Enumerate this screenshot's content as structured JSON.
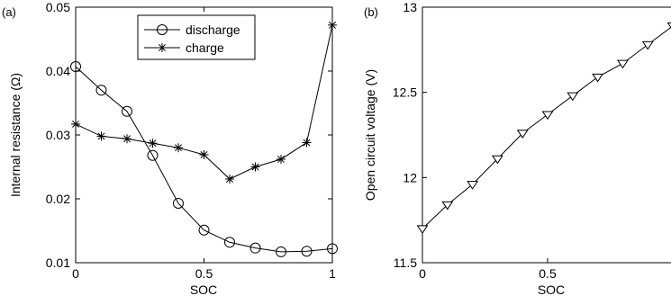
{
  "chart_data": [
    {
      "type": "line",
      "panel_label": "(a)",
      "title": "",
      "xlabel": "SOC",
      "ylabel": "Internal resistance (Ω)",
      "xlim": [
        0,
        1
      ],
      "ylim": [
        0.01,
        0.05
      ],
      "x_ticks": [
        0,
        0.5,
        1
      ],
      "x_tick_labels": [
        "0",
        "0.5",
        "1"
      ],
      "y_ticks": [
        0.01,
        0.02,
        0.03,
        0.04,
        0.05
      ],
      "y_tick_labels": [
        "0.01",
        "0.02",
        "0.03",
        "0.04",
        "0.05"
      ],
      "grid": false,
      "legend": {
        "placement": "top-center",
        "entries": [
          "discharge",
          "charge"
        ]
      },
      "series": [
        {
          "name": "discharge",
          "marker": "circle",
          "x": [
            0,
            0.1,
            0.2,
            0.3,
            0.4,
            0.5,
            0.6,
            0.7,
            0.8,
            0.9,
            1.0
          ],
          "y": [
            0.0407,
            0.037,
            0.0337,
            0.0268,
            0.0193,
            0.0151,
            0.0132,
            0.0123,
            0.0117,
            0.0118,
            0.0122
          ]
        },
        {
          "name": "charge",
          "marker": "asterisk",
          "x": [
            0,
            0.1,
            0.2,
            0.3,
            0.4,
            0.5,
            0.6,
            0.7,
            0.8,
            0.9,
            1.0
          ],
          "y": [
            0.0317,
            0.0298,
            0.0294,
            0.0287,
            0.028,
            0.0269,
            0.0231,
            0.025,
            0.0262,
            0.0288,
            0.0472
          ]
        }
      ]
    },
    {
      "type": "line",
      "panel_label": "(b)",
      "title": "",
      "xlabel": "SOC",
      "ylabel": "Open circuit voltage (V)",
      "xlim": [
        0,
        1
      ],
      "ylim": [
        11.5,
        13
      ],
      "x_ticks": [
        0,
        0.5
      ],
      "x_tick_labels": [
        "0",
        "0.5"
      ],
      "y_ticks": [
        11.5,
        12,
        12.5,
        13
      ],
      "y_tick_labels": [
        "11.5",
        "12",
        "12.5",
        "13"
      ],
      "grid": false,
      "series": [
        {
          "marker": "triangle-down",
          "x": [
            0,
            0.1,
            0.2,
            0.3,
            0.4,
            0.5,
            0.6,
            0.7,
            0.8,
            0.9,
            1.0
          ],
          "y": [
            11.7,
            11.84,
            11.96,
            12.11,
            12.26,
            12.37,
            12.48,
            12.59,
            12.67,
            12.78,
            12.89
          ]
        }
      ]
    }
  ]
}
